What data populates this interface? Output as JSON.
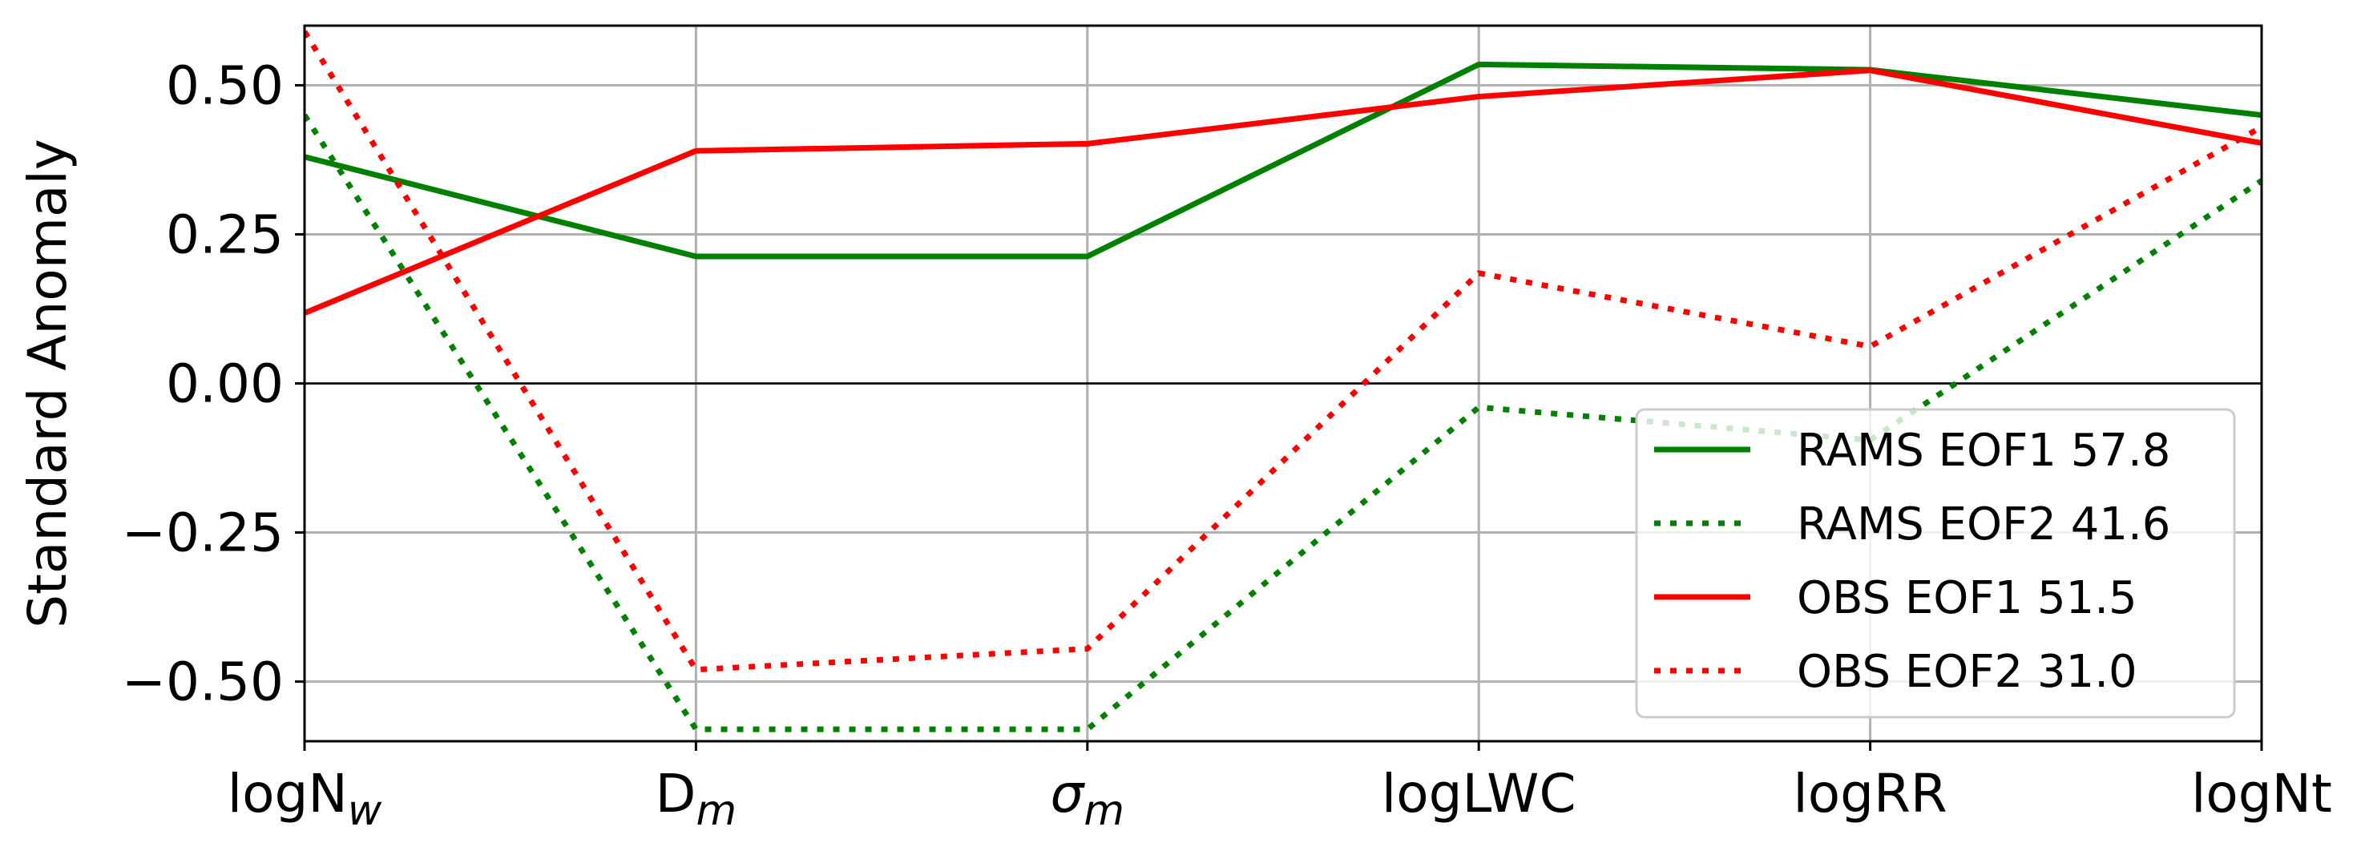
{
  "chart_data": {
    "type": "line",
    "categories": [
      "logN",
      "D",
      "σ",
      "logLWC",
      "logRR",
      "logNt"
    ],
    "category_subscripts": [
      "w",
      "m",
      "m",
      "",
      "",
      ""
    ],
    "ylabel": "Standard Anomaly",
    "xlabel": "",
    "ylim": [
      -0.6,
      0.6
    ],
    "yticks": [
      -0.5,
      -0.25,
      0.0,
      0.25,
      0.5
    ],
    "ytick_labels": [
      "−0.50",
      "−0.25",
      "0.00",
      "0.25",
      "0.50"
    ],
    "grid": true,
    "zero_line": true,
    "legend_position": "lower-right",
    "series": [
      {
        "name": "RAMS EOF1 57.8",
        "color": "#008000",
        "style": "solid",
        "values": [
          0.38,
          0.213,
          0.213,
          0.535,
          0.526,
          0.45
        ]
      },
      {
        "name": "RAMS EOF2 41.6",
        "color": "#008000",
        "style": "dotted",
        "values": [
          0.45,
          -0.58,
          -0.58,
          -0.04,
          -0.095,
          0.34
        ]
      },
      {
        "name": "OBS EOF1 51.5",
        "color": "#ff0000",
        "style": "solid",
        "values": [
          0.118,
          0.39,
          0.402,
          0.481,
          0.525,
          0.403
        ]
      },
      {
        "name": "OBS EOF2 31.0",
        "color": "#ff0000",
        "style": "dotted",
        "values": [
          0.59,
          -0.48,
          -0.445,
          0.185,
          0.062,
          0.43
        ]
      }
    ]
  }
}
